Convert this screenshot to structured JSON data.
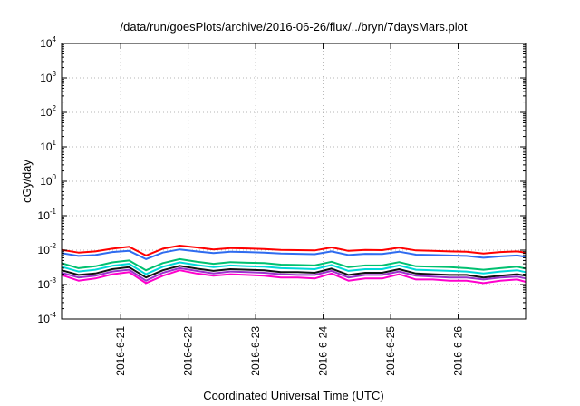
{
  "chart_data": {
    "type": "line",
    "title": "/data/run/goesPlots/archive/2016-06-26/flux/../bryn/7daysMars.plot",
    "xlabel": "Coordinated Universal Time (UTC)",
    "ylabel": "cGy/day",
    "yscale": "log",
    "ylim": [
      0.0001,
      10000
    ],
    "yticks": [
      {
        "base": "10",
        "exp": "4"
      },
      {
        "base": "10",
        "exp": "3"
      },
      {
        "base": "10",
        "exp": "2"
      },
      {
        "base": "10",
        "exp": "1"
      },
      {
        "base": "10",
        "exp": "0"
      },
      {
        "base": "10",
        "exp": "-1"
      },
      {
        "base": "10",
        "exp": "-2"
      },
      {
        "base": "10",
        "exp": "-3"
      },
      {
        "base": "10",
        "exp": "-4"
      }
    ],
    "xlim": [
      "2016-06-20 03:00",
      "2016-06-27 00:00"
    ],
    "xticks": [
      "2016-6-21",
      "2016-6-22",
      "2016-6-23",
      "2016-6-24",
      "2016-6-25",
      "2016-6-26"
    ],
    "grid": true,
    "x": [
      "2016-06-20 03:00",
      "2016-06-20 09:00",
      "2016-06-20 15:00",
      "2016-06-20 21:00",
      "2016-06-21 03:00",
      "2016-06-21 09:00",
      "2016-06-21 15:00",
      "2016-06-21 21:00",
      "2016-06-22 03:00",
      "2016-06-22 09:00",
      "2016-06-22 15:00",
      "2016-06-22 21:00",
      "2016-06-23 03:00",
      "2016-06-23 09:00",
      "2016-06-23 15:00",
      "2016-06-23 21:00",
      "2016-06-24 03:00",
      "2016-06-24 09:00",
      "2016-06-24 15:00",
      "2016-06-24 21:00",
      "2016-06-25 03:00",
      "2016-06-25 09:00",
      "2016-06-25 15:00",
      "2016-06-25 21:00",
      "2016-06-26 03:00",
      "2016-06-26 09:00",
      "2016-06-26 15:00",
      "2016-06-26 21:00",
      "2016-06-27 00:00"
    ],
    "series": [
      {
        "color": "#ff0000",
        "values": [
          0.0102,
          0.0085,
          0.0092,
          0.011,
          0.0125,
          0.007,
          0.011,
          0.0135,
          0.012,
          0.0105,
          0.0115,
          0.0112,
          0.0108,
          0.0102,
          0.01,
          0.0098,
          0.012,
          0.0095,
          0.0102,
          0.01,
          0.0118,
          0.0098,
          0.0095,
          0.0092,
          0.009,
          0.008,
          0.0088,
          0.0092,
          0.0085
        ]
      },
      {
        "color": "#2f6cf0",
        "values": [
          0.0082,
          0.0068,
          0.0072,
          0.0088,
          0.0095,
          0.0055,
          0.0085,
          0.0105,
          0.0092,
          0.0082,
          0.009,
          0.0088,
          0.0085,
          0.008,
          0.0078,
          0.0076,
          0.0092,
          0.0072,
          0.0078,
          0.0077,
          0.009,
          0.0074,
          0.0072,
          0.007,
          0.0068,
          0.006,
          0.0066,
          0.007,
          0.0064
        ]
      },
      {
        "color": "#00c070",
        "values": [
          0.0042,
          0.003,
          0.0034,
          0.0044,
          0.005,
          0.0026,
          0.0042,
          0.0055,
          0.0046,
          0.004,
          0.0045,
          0.0043,
          0.0042,
          0.0038,
          0.0037,
          0.0036,
          0.0046,
          0.0032,
          0.0036,
          0.0036,
          0.0045,
          0.0034,
          0.0033,
          0.0032,
          0.003,
          0.0027,
          0.003,
          0.0033,
          0.0029
        ]
      },
      {
        "color": "#00d8d8",
        "values": [
          0.0033,
          0.0024,
          0.0027,
          0.0035,
          0.004,
          0.002,
          0.0033,
          0.0044,
          0.0037,
          0.0032,
          0.0036,
          0.0034,
          0.0033,
          0.003,
          0.0029,
          0.0028,
          0.0037,
          0.0025,
          0.0028,
          0.0028,
          0.0036,
          0.0027,
          0.0026,
          0.0025,
          0.0024,
          0.0021,
          0.0024,
          0.0026,
          0.0023
        ]
      },
      {
        "color": "#111111",
        "values": [
          0.0026,
          0.0019,
          0.0021,
          0.0028,
          0.0032,
          0.0016,
          0.0026,
          0.0035,
          0.0029,
          0.0025,
          0.0028,
          0.0027,
          0.0026,
          0.0023,
          0.0023,
          0.0022,
          0.0029,
          0.0019,
          0.0022,
          0.0022,
          0.0028,
          0.0021,
          0.002,
          0.0019,
          0.0019,
          0.0016,
          0.0018,
          0.002,
          0.0018
        ]
      },
      {
        "color": "#9933cc",
        "values": [
          0.0022,
          0.0016,
          0.0018,
          0.0024,
          0.0027,
          0.0013,
          0.0022,
          0.003,
          0.0025,
          0.0021,
          0.0024,
          0.0023,
          0.0022,
          0.002,
          0.0019,
          0.0019,
          0.0025,
          0.0016,
          0.0019,
          0.0019,
          0.0024,
          0.0018,
          0.0017,
          0.0016,
          0.0016,
          0.0014,
          0.0016,
          0.0017,
          0.0015
        ]
      },
      {
        "color": "#ff00cc",
        "values": [
          0.0019,
          0.0013,
          0.0015,
          0.002,
          0.0023,
          0.0011,
          0.0018,
          0.0026,
          0.0021,
          0.0018,
          0.002,
          0.0019,
          0.0018,
          0.0016,
          0.0016,
          0.0015,
          0.0021,
          0.0013,
          0.0015,
          0.0015,
          0.002,
          0.0014,
          0.0014,
          0.0013,
          0.0013,
          0.0011,
          0.0013,
          0.0014,
          0.0012
        ]
      }
    ]
  }
}
